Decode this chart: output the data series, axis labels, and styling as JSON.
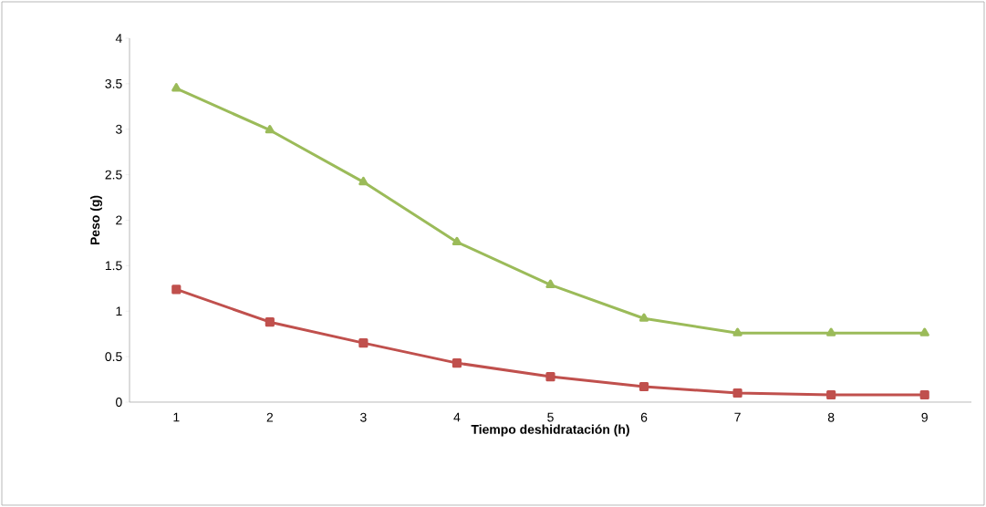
{
  "chart_data": {
    "type": "line",
    "xlabel": "Tiempo deshidratación (h)",
    "ylabel": "Peso (g)",
    "categories": [
      "1",
      "2",
      "3",
      "4",
      "5",
      "6",
      "7",
      "8",
      "9"
    ],
    "series": [
      {
        "color": "#9bbb59",
        "marker": "triangle",
        "values": [
          3.45,
          2.99,
          2.42,
          1.76,
          1.29,
          0.92,
          0.76,
          0.76,
          0.76
        ]
      },
      {
        "color": "#c0504d",
        "marker": "square",
        "values": [
          1.24,
          0.88,
          0.65,
          0.43,
          0.28,
          0.17,
          0.1,
          0.08,
          0.08
        ]
      }
    ],
    "ylim": [
      0,
      4
    ],
    "yticks": [
      0,
      0.5,
      1,
      1.5,
      2,
      2.5,
      3,
      3.5,
      4
    ],
    "grid": false
  }
}
